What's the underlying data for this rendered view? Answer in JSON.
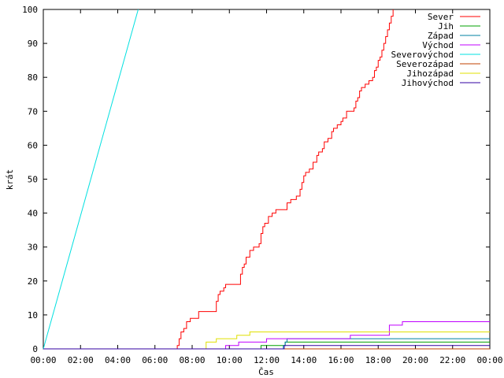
{
  "chart_data": {
    "type": "line",
    "title": "",
    "xlabel": "Čas",
    "ylabel": "krát",
    "xlim": [
      0,
      24
    ],
    "ylim": [
      0,
      100
    ],
    "grid": false,
    "legend_position": "top-right",
    "x_ticks": [
      {
        "value": 0,
        "label": "00:00"
      },
      {
        "value": 2,
        "label": "02:00"
      },
      {
        "value": 4,
        "label": "04:00"
      },
      {
        "value": 6,
        "label": "06:00"
      },
      {
        "value": 8,
        "label": "08:00"
      },
      {
        "value": 10,
        "label": "10:00"
      },
      {
        "value": 12,
        "label": "12:00"
      },
      {
        "value": 14,
        "label": "14:00"
      },
      {
        "value": 16,
        "label": "16:00"
      },
      {
        "value": 18,
        "label": "18:00"
      },
      {
        "value": 20,
        "label": "20:00"
      },
      {
        "value": 22,
        "label": "22:00"
      },
      {
        "value": 24,
        "label": "00:00"
      }
    ],
    "y_ticks": [
      0,
      10,
      20,
      30,
      40,
      50,
      60,
      70,
      80,
      90,
      100
    ],
    "series": [
      {
        "name": "Sever",
        "color": "#ff0000",
        "step": true,
        "points": [
          [
            0,
            0
          ],
          [
            7.1,
            0
          ],
          [
            7.2,
            1
          ],
          [
            7.3,
            3
          ],
          [
            7.4,
            5
          ],
          [
            7.55,
            6
          ],
          [
            7.7,
            8
          ],
          [
            7.9,
            9
          ],
          [
            8.3,
            9
          ],
          [
            8.35,
            11
          ],
          [
            9.2,
            11
          ],
          [
            9.3,
            14
          ],
          [
            9.4,
            16
          ],
          [
            9.5,
            17
          ],
          [
            9.7,
            18
          ],
          [
            9.8,
            19
          ],
          [
            10.5,
            19
          ],
          [
            10.6,
            22
          ],
          [
            10.7,
            24
          ],
          [
            10.8,
            25
          ],
          [
            10.9,
            27
          ],
          [
            11.1,
            29
          ],
          [
            11.3,
            30
          ],
          [
            11.6,
            31
          ],
          [
            11.7,
            34
          ],
          [
            11.8,
            36
          ],
          [
            11.9,
            37
          ],
          [
            12.1,
            39
          ],
          [
            12.3,
            40
          ],
          [
            12.5,
            41
          ],
          [
            13.0,
            41
          ],
          [
            13.1,
            43
          ],
          [
            13.3,
            44
          ],
          [
            13.6,
            45
          ],
          [
            13.8,
            47
          ],
          [
            13.9,
            49
          ],
          [
            14.0,
            51
          ],
          [
            14.1,
            52
          ],
          [
            14.3,
            53
          ],
          [
            14.5,
            55
          ],
          [
            14.7,
            57
          ],
          [
            14.8,
            58
          ],
          [
            15.0,
            59
          ],
          [
            15.1,
            61
          ],
          [
            15.3,
            62
          ],
          [
            15.5,
            64
          ],
          [
            15.6,
            65
          ],
          [
            15.8,
            66
          ],
          [
            16.0,
            67
          ],
          [
            16.1,
            68
          ],
          [
            16.3,
            70
          ],
          [
            16.7,
            71
          ],
          [
            16.8,
            73
          ],
          [
            16.9,
            74
          ],
          [
            17.0,
            76
          ],
          [
            17.1,
            77
          ],
          [
            17.3,
            78
          ],
          [
            17.5,
            79
          ],
          [
            17.7,
            80
          ],
          [
            17.8,
            82
          ],
          [
            17.9,
            83
          ],
          [
            18.0,
            85
          ],
          [
            18.1,
            86
          ],
          [
            18.2,
            88
          ],
          [
            18.3,
            90
          ],
          [
            18.4,
            92
          ],
          [
            18.5,
            94
          ],
          [
            18.6,
            96
          ],
          [
            18.7,
            98
          ],
          [
            18.8,
            100
          ]
        ]
      },
      {
        "name": "Jih",
        "color": "#00a000",
        "step": true,
        "points": [
          [
            0,
            0
          ],
          [
            11.7,
            0
          ],
          [
            11.7,
            1
          ],
          [
            13.0,
            1
          ],
          [
            13.0,
            2
          ],
          [
            24,
            2
          ]
        ]
      },
      {
        "name": "Západ",
        "color": "#0080a0",
        "step": true,
        "points": [
          [
            0,
            0
          ],
          [
            12.9,
            0
          ],
          [
            12.9,
            1
          ],
          [
            13.0,
            1
          ],
          [
            13.0,
            2
          ],
          [
            13.1,
            2
          ],
          [
            13.1,
            3
          ],
          [
            24,
            3
          ]
        ]
      },
      {
        "name": "Východ",
        "color": "#c000ff",
        "step": true,
        "points": [
          [
            0,
            0
          ],
          [
            9.8,
            0
          ],
          [
            9.8,
            1
          ],
          [
            10.5,
            1
          ],
          [
            10.5,
            2
          ],
          [
            12.0,
            2
          ],
          [
            12.0,
            3
          ],
          [
            16.5,
            3
          ],
          [
            16.5,
            4
          ],
          [
            18.6,
            4
          ],
          [
            18.6,
            7
          ],
          [
            19.3,
            7
          ],
          [
            19.3,
            8
          ],
          [
            24,
            8
          ]
        ]
      },
      {
        "name": "Severovýchod",
        "color": "#00e0e0",
        "step": false,
        "points": [
          [
            0,
            0
          ],
          [
            5.1,
            100
          ]
        ]
      },
      {
        "name": "Severozápad",
        "color": "#c04000",
        "step": true,
        "points": [
          [
            0,
            0
          ],
          [
            24,
            0
          ]
        ]
      },
      {
        "name": "Jihozápad",
        "color": "#e0e000",
        "step": true,
        "points": [
          [
            0,
            0
          ],
          [
            8.75,
            0
          ],
          [
            8.75,
            2
          ],
          [
            9.3,
            2
          ],
          [
            9.3,
            3
          ],
          [
            10.4,
            3
          ],
          [
            10.4,
            4
          ],
          [
            11.1,
            4
          ],
          [
            11.1,
            5
          ],
          [
            24,
            5
          ]
        ]
      },
      {
        "name": "Jihovýchod",
        "color": "#3000a0",
        "step": true,
        "points": [
          [
            0,
            0
          ],
          [
            12.95,
            0
          ],
          [
            12.95,
            1
          ],
          [
            24,
            1
          ]
        ]
      }
    ]
  }
}
